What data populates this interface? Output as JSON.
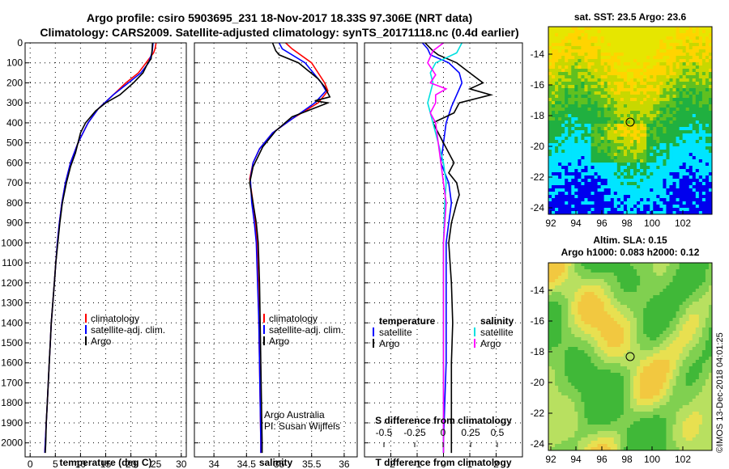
{
  "title": {
    "line1": "Argo profile: csiro 5903695_231 18-Nov-2017 18.33S 97.306E (NRT data)",
    "line2": "Climatology: CARS2009. Satellite-adjusted climatology: synTS_20171118.nc (0.4d earlier)"
  },
  "depth_ticks": [
    0,
    100,
    200,
    300,
    400,
    500,
    600,
    700,
    800,
    900,
    1000,
    1100,
    1200,
    1300,
    1400,
    1500,
    1600,
    1700,
    1800,
    1900,
    2000
  ],
  "colors": {
    "climatology": "#ff0000",
    "satellite": "#0000ff",
    "argo": "#000000",
    "satellite_salinity": "#00e0e0",
    "argo_salinity": "#ff00ff"
  },
  "chart_data": [
    {
      "id": "temperature",
      "type": "line",
      "xlabel": "temperature (deg C)",
      "xlim": [
        -1,
        31
      ],
      "ylim": [
        2070,
        0
      ],
      "xticks": [
        0,
        5,
        10,
        15,
        20,
        25,
        30
      ],
      "legend": [
        "climatology",
        "satellite-adj. clim.",
        "Argo"
      ],
      "series": [
        {
          "name": "climatology",
          "points": [
            [
              25,
              0
            ],
            [
              24.8,
              30
            ],
            [
              24.5,
              50
            ],
            [
              23,
              100
            ],
            [
              21.5,
              150
            ],
            [
              19,
              200
            ],
            [
              16.5,
              260
            ],
            [
              13.5,
              330
            ],
            [
              11.5,
              400
            ],
            [
              9.5,
              500
            ],
            [
              8,
              600
            ],
            [
              7,
              700
            ],
            [
              6.3,
              800
            ],
            [
              5.8,
              900
            ],
            [
              5.4,
              1000
            ],
            [
              5.1,
              1100
            ],
            [
              4.8,
              1200
            ],
            [
              4.5,
              1300
            ],
            [
              4.2,
              1400
            ],
            [
              4,
              1500
            ],
            [
              3.8,
              1600
            ],
            [
              3.6,
              1700
            ],
            [
              3.4,
              1800
            ],
            [
              3.2,
              1900
            ],
            [
              3,
              2000
            ],
            [
              2.9,
              2050
            ]
          ]
        },
        {
          "name": "satellite-adj. clim.",
          "points": [
            [
              24.4,
              0
            ],
            [
              24.2,
              50
            ],
            [
              23.5,
              100
            ],
            [
              22,
              150
            ],
            [
              19.5,
              200
            ],
            [
              16.5,
              260
            ],
            [
              13.5,
              330
            ],
            [
              11.5,
              400
            ],
            [
              9.5,
              500
            ],
            [
              8,
              600
            ],
            [
              7,
              700
            ],
            [
              6.3,
              800
            ],
            [
              5.8,
              900
            ],
            [
              5.4,
              1000
            ],
            [
              5.1,
              1100
            ],
            [
              4.8,
              1200
            ],
            [
              4.5,
              1300
            ],
            [
              4.2,
              1400
            ],
            [
              4,
              1500
            ],
            [
              3.8,
              1600
            ],
            [
              3.6,
              1700
            ],
            [
              3.4,
              1800
            ],
            [
              3.2,
              1900
            ],
            [
              3,
              2000
            ],
            [
              2.9,
              2050
            ]
          ]
        },
        {
          "name": "Argo",
          "points": [
            [
              24.3,
              0
            ],
            [
              24.2,
              40
            ],
            [
              24,
              80
            ],
            [
              23.4,
              100
            ],
            [
              22.4,
              150
            ],
            [
              20.5,
              200
            ],
            [
              17.8,
              260
            ],
            [
              15,
              300
            ],
            [
              13,
              340
            ],
            [
              11,
              400
            ],
            [
              10,
              450
            ],
            [
              9,
              550
            ],
            [
              8,
              620
            ],
            [
              7.2,
              700
            ],
            [
              6.4,
              800
            ],
            [
              5.9,
              900
            ],
            [
              5.5,
              1000
            ],
            [
              5.1,
              1100
            ],
            [
              4.8,
              1200
            ],
            [
              4.5,
              1300
            ],
            [
              4.2,
              1400
            ],
            [
              4,
              1500
            ],
            [
              3.8,
              1600
            ],
            [
              3.6,
              1700
            ],
            [
              3.4,
              1800
            ],
            [
              3.2,
              1900
            ],
            [
              3.1,
              2000
            ],
            [
              3,
              2050
            ]
          ]
        }
      ]
    },
    {
      "id": "salinity",
      "type": "line",
      "xlabel": "salinity",
      "xlim": [
        33.7,
        36.2
      ],
      "ylim": [
        2070,
        0
      ],
      "xticks": [
        34,
        34.5,
        35,
        35.5,
        36
      ],
      "legend": [
        "climatology",
        "satellite-adj. clim.",
        "Argo"
      ],
      "annotation": [
        "Argo Australia",
        "PI: Susan Wijffels"
      ],
      "series": [
        {
          "name": "climatology",
          "points": [
            [
              35.1,
              0
            ],
            [
              35.2,
              30
            ],
            [
              35.5,
              100
            ],
            [
              35.7,
              200
            ],
            [
              35.75,
              240
            ],
            [
              35.6,
              300
            ],
            [
              35.2,
              380
            ],
            [
              34.9,
              450
            ],
            [
              34.7,
              530
            ],
            [
              34.6,
              600
            ],
            [
              34.55,
              680
            ],
            [
              34.6,
              800
            ],
            [
              34.64,
              900
            ],
            [
              34.66,
              1000
            ],
            [
              34.68,
              1200
            ],
            [
              34.69,
              1400
            ],
            [
              34.7,
              1600
            ],
            [
              34.71,
              1800
            ],
            [
              34.72,
              2000
            ],
            [
              34.72,
              2050
            ]
          ]
        },
        {
          "name": "satellite-adj. clim.",
          "points": [
            [
              35.0,
              0
            ],
            [
              35.05,
              30
            ],
            [
              35.4,
              100
            ],
            [
              35.65,
              200
            ],
            [
              35.72,
              240
            ],
            [
              35.55,
              300
            ],
            [
              35.2,
              380
            ],
            [
              34.9,
              450
            ],
            [
              34.7,
              530
            ],
            [
              34.6,
              600
            ],
            [
              34.56,
              680
            ],
            [
              34.58,
              800
            ],
            [
              34.62,
              900
            ],
            [
              34.65,
              1000
            ],
            [
              34.67,
              1200
            ],
            [
              34.69,
              1400
            ],
            [
              34.7,
              1600
            ],
            [
              34.71,
              1800
            ],
            [
              34.72,
              2000
            ],
            [
              34.72,
              2050
            ]
          ]
        },
        {
          "name": "Argo",
          "points": [
            [
              34.9,
              0
            ],
            [
              34.95,
              40
            ],
            [
              35.0,
              60
            ],
            [
              35.3,
              100
            ],
            [
              35.6,
              180
            ],
            [
              35.7,
              220
            ],
            [
              35.78,
              270
            ],
            [
              35.55,
              290
            ],
            [
              35.75,
              300
            ],
            [
              35.2,
              370
            ],
            [
              34.95,
              440
            ],
            [
              34.75,
              520
            ],
            [
              34.6,
              620
            ],
            [
              34.55,
              700
            ],
            [
              34.6,
              800
            ],
            [
              34.65,
              900
            ],
            [
              34.68,
              1000
            ],
            [
              34.7,
              1200
            ],
            [
              34.71,
              1400
            ],
            [
              34.72,
              1600
            ],
            [
              34.73,
              1800
            ],
            [
              34.74,
              2000
            ],
            [
              34.74,
              2050
            ]
          ]
        }
      ]
    },
    {
      "id": "difference",
      "type": "line",
      "xlabel": "T difference from climatology",
      "secondary_xlabel": "S difference from climatology",
      "xlim": [
        -3,
        3
      ],
      "ylim": [
        2070,
        0
      ],
      "xticks": [
        -2,
        -1,
        0,
        1,
        2
      ],
      "secondary_xticks": [
        "-0.5",
        "-0.25",
        "0",
        "0.25",
        "0.5"
      ],
      "legend_headers": [
        "temperature",
        "salinity"
      ],
      "legend": [
        "satellite",
        "Argo",
        "satellite",
        "Argo"
      ],
      "series": [
        {
          "name": "T satellite",
          "points": [
            [
              -0.8,
              0
            ],
            [
              -0.6,
              30
            ],
            [
              -0.5,
              60
            ],
            [
              0.2,
              100
            ],
            [
              0.6,
              150
            ],
            [
              0.7,
              200
            ],
            [
              0.5,
              260
            ],
            [
              0.3,
              320
            ],
            [
              0.1,
              400
            ],
            [
              0,
              500
            ],
            [
              -0.1,
              600
            ],
            [
              0.2,
              700
            ],
            [
              0.3,
              800
            ],
            [
              0.2,
              900
            ],
            [
              0.1,
              1000
            ],
            [
              0.1,
              1200
            ],
            [
              0.1,
              1400
            ],
            [
              0.1,
              1600
            ],
            [
              0.05,
              1800
            ],
            [
              0,
              2000
            ],
            [
              0,
              2050
            ]
          ]
        },
        {
          "name": "T Argo",
          "points": [
            [
              -0.7,
              0
            ],
            [
              -0.4,
              40
            ],
            [
              -0.2,
              60
            ],
            [
              0.5,
              100
            ],
            [
              1,
              150
            ],
            [
              1.5,
              200
            ],
            [
              1,
              230
            ],
            [
              1.8,
              260
            ],
            [
              0.6,
              300
            ],
            [
              0.4,
              350
            ],
            [
              -0.4,
              400
            ],
            [
              -0.2,
              450
            ],
            [
              0,
              500
            ],
            [
              0.4,
              600
            ],
            [
              0.2,
              650
            ],
            [
              0.5,
              700
            ],
            [
              0.6,
              760
            ],
            [
              0.5,
              800
            ],
            [
              0.3,
              900
            ],
            [
              0.2,
              1000
            ],
            [
              0.3,
              1200
            ],
            [
              0.35,
              1400
            ],
            [
              0.3,
              1600
            ],
            [
              0.3,
              1800
            ],
            [
              0.3,
              2000
            ],
            [
              0.3,
              2050
            ]
          ]
        },
        {
          "name": "S satellite",
          "points": [
            [
              0.7,
              0
            ],
            [
              0.5,
              50
            ],
            [
              -0.3,
              100
            ],
            [
              -0.5,
              150
            ],
            [
              -0.4,
              200
            ],
            [
              -0.6,
              300
            ],
            [
              -0.4,
              400
            ],
            [
              -0.2,
              500
            ],
            [
              0,
              600
            ],
            [
              0.1,
              700
            ],
            [
              0.05,
              800
            ],
            [
              0,
              1000
            ],
            [
              0,
              1500
            ],
            [
              0,
              2050
            ]
          ]
        },
        {
          "name": "S Argo",
          "points": [
            [
              0,
              0
            ],
            [
              -0.4,
              40
            ],
            [
              -0.6,
              100
            ],
            [
              -0.3,
              160
            ],
            [
              -0.5,
              200
            ],
            [
              0.1,
              230
            ],
            [
              -0.3,
              260
            ],
            [
              -0.3,
              300
            ],
            [
              -0.5,
              350
            ],
            [
              -0.3,
              400
            ],
            [
              -0.2,
              500
            ],
            [
              -0.1,
              600
            ],
            [
              0,
              700
            ],
            [
              0.1,
              800
            ],
            [
              0,
              1000
            ],
            [
              0,
              1500
            ],
            [
              0,
              2050
            ]
          ]
        }
      ]
    }
  ],
  "maps": {
    "sst": {
      "title": "sat. SST: 23.5 Argo: 23.6",
      "yticks": [
        "-14",
        "-16",
        "-18",
        "-20",
        "-22",
        "-24"
      ],
      "xticks": [
        "92",
        "94",
        "96",
        "98",
        "100",
        "102"
      ]
    },
    "sla": {
      "title1": "Altim. SLA: 0.15",
      "title2": "Argo h1000: 0.083 h2000: 0.12",
      "yticks": [
        "-14",
        "-16",
        "-18",
        "-20",
        "-22",
        "-24"
      ],
      "xticks": [
        "92",
        "94",
        "96",
        "98",
        "100",
        "102"
      ]
    }
  },
  "credit": "©IMOS 13-Dec-2018 04:01:25"
}
